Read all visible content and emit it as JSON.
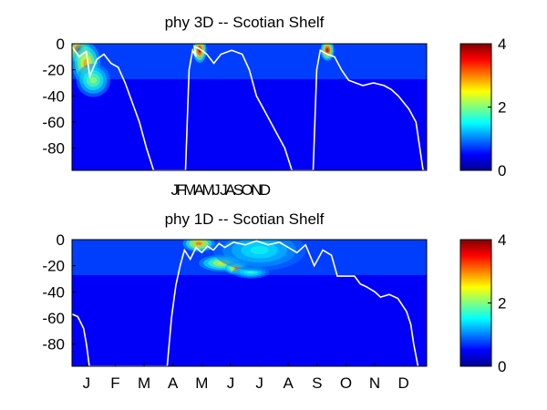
{
  "chart_data": [
    {
      "type": "heatmap",
      "title": "phy 3D   -- Scotian Shelf",
      "ylim": [
        -97,
        0
      ],
      "ytick_labels": [
        "0",
        "-20",
        "-40",
        "-60",
        "-80"
      ],
      "yticks": [
        0,
        -20,
        -40,
        -60,
        -80
      ],
      "xtick_labels": [],
      "under_label": "JFMAMJ JASOND",
      "colorbar": {
        "clim": [
          0,
          4
        ],
        "tick_labels": [
          "0",
          "2",
          "4"
        ],
        "ticks": [
          0,
          2,
          4
        ],
        "colormap": "jet"
      },
      "overlay_line": {
        "color": "#ffffff",
        "description_key": "white mixed-layer-depth line"
      },
      "overlay_x": [
        0.0,
        0.02,
        0.04,
        0.05,
        0.07,
        0.09,
        0.11,
        0.13,
        0.15,
        0.17,
        0.19,
        0.21,
        0.23,
        0.25,
        0.28,
        0.3,
        0.32,
        0.33,
        0.34,
        0.35,
        0.345,
        0.36,
        0.38,
        0.4,
        0.42,
        0.45,
        0.48,
        0.5,
        0.52,
        0.55,
        0.57,
        0.6,
        0.62,
        0.64,
        0.66,
        0.67,
        0.68,
        0.69,
        0.7,
        0.72,
        0.74,
        0.75,
        0.76,
        0.78,
        0.8,
        0.82,
        0.85,
        0.88,
        0.9,
        0.92,
        0.95,
        0.97,
        0.99,
        1.0
      ],
      "overlay_y": [
        -2,
        -10,
        -6,
        -25,
        -12,
        -8,
        -15,
        -18,
        -30,
        -45,
        -60,
        -80,
        -97,
        -97,
        -97,
        -97,
        -97,
        -20,
        -5,
        -10,
        -2,
        -4,
        -8,
        -15,
        -8,
        -5,
        -8,
        -20,
        -40,
        -55,
        -65,
        -80,
        -97,
        -97,
        -97,
        -97,
        -97,
        -20,
        -5,
        -8,
        -10,
        -15,
        -20,
        -28,
        -30,
        -32,
        -30,
        -32,
        -35,
        -40,
        -50,
        -60,
        -97,
        -97
      ],
      "hot_spots": [
        {
          "x": 0.02,
          "y": -5,
          "value": 4.0,
          "rx": 0.02,
          "ry": 6
        },
        {
          "x": 0.04,
          "y": -15,
          "value": 3.0,
          "rx": 0.025,
          "ry": 10
        },
        {
          "x": 0.06,
          "y": -28,
          "value": 2.2,
          "rx": 0.03,
          "ry": 8
        },
        {
          "x": 0.36,
          "y": -5,
          "value": 4.0,
          "rx": 0.012,
          "ry": 6
        },
        {
          "x": 0.72,
          "y": -5,
          "value": 4.0,
          "rx": 0.012,
          "ry": 5
        }
      ]
    },
    {
      "type": "heatmap",
      "title": "phy 1D   -- Scotian Shelf",
      "ylim": [
        -97,
        0
      ],
      "ytick_labels": [
        "0",
        "-20",
        "-40",
        "-60",
        "-80"
      ],
      "yticks": [
        0,
        -20,
        -40,
        -60,
        -80
      ],
      "xtick_labels": [
        "J",
        "F",
        "M",
        "A",
        "M",
        "J",
        "J",
        "A",
        "S",
        "O",
        "N",
        "D"
      ],
      "xticks": [
        0.5,
        1.5,
        2.5,
        3.5,
        4.5,
        5.5,
        6.5,
        7.5,
        8.5,
        9.5,
        10.5,
        11.5
      ],
      "xlim": [
        0,
        12.3
      ],
      "colorbar": {
        "clim": [
          0,
          4
        ],
        "tick_labels": [
          "0",
          "2",
          "4"
        ],
        "ticks": [
          0,
          2,
          4
        ],
        "colormap": "jet"
      },
      "overlay_line": {
        "color": "#ffffff"
      },
      "overlay_x": [
        0.0,
        0.2,
        0.4,
        0.5,
        0.6,
        3.3,
        3.45,
        3.6,
        3.75,
        3.9,
        4.1,
        4.3,
        4.5,
        4.7,
        4.9,
        5.1,
        5.3,
        5.6,
        6.0,
        6.4,
        6.8,
        7.2,
        7.5,
        7.8,
        8.1,
        8.4,
        8.7,
        9.0,
        9.2,
        9.4,
        9.6,
        9.8,
        10.0,
        10.2,
        10.5,
        10.7,
        11.0,
        11.3,
        11.6,
        11.75,
        11.85,
        12.0
      ],
      "overlay_y": [
        -57,
        -59,
        -68,
        -80,
        -97,
        -97,
        -60,
        -35,
        -20,
        -8,
        -15,
        -6,
        -10,
        -5,
        -8,
        -3,
        -6,
        -2,
        -4,
        -1,
        -4,
        -2,
        -6,
        -10,
        -4,
        -20,
        -8,
        -12,
        -28,
        -28,
        -28,
        -28,
        -34,
        -36,
        -40,
        -44,
        -42,
        -45,
        -55,
        -65,
        -80,
        -97
      ],
      "hot_spots": [
        {
          "x": 4.4,
          "y": -3,
          "value": 3.2,
          "rx": 0.35,
          "ry": 4
        },
        {
          "x": 5.2,
          "y": -18,
          "value": 2.6,
          "rx": 0.5,
          "ry": 4
        },
        {
          "x": 5.7,
          "y": -22,
          "value": 3.2,
          "rx": 0.25,
          "ry": 3
        },
        {
          "x": 6.2,
          "y": -25,
          "value": 1.8,
          "rx": 0.4,
          "ry": 3
        },
        {
          "x": 6.5,
          "y": -8,
          "value": 1.6,
          "rx": 1.0,
          "ry": 10
        }
      ]
    }
  ]
}
